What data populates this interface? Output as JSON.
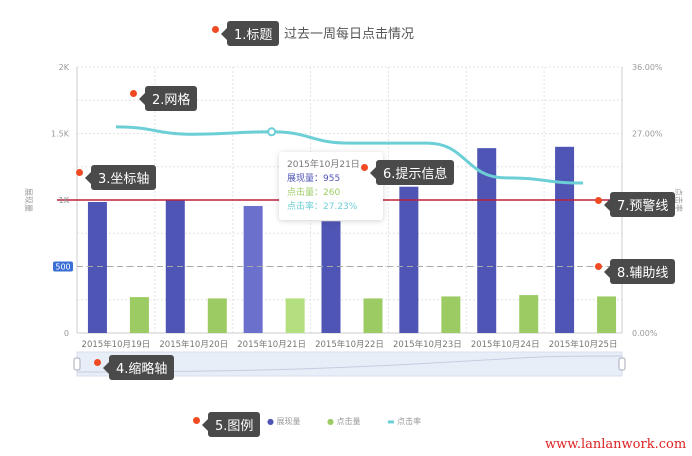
{
  "title": "过去一周每日点击情况",
  "annotations": [
    "1.标题",
    "2.网格",
    "3.坐标轴",
    "4.缩略轴",
    "5.图例",
    "6.提示信息",
    "7.预警线",
    "8.辅助线"
  ],
  "tooltip": {
    "date": "2015年10月21日",
    "rows": [
      "展现量：955",
      "点击量：260",
      "点击率：27.23%"
    ]
  },
  "watermark": "www.lanlanwork.com",
  "colors": {
    "impressions": "#4f55b5",
    "clicks": "#9ccb63",
    "rate": "#6ccfd6",
    "warning": "#c0203a",
    "aux": "#3b6fd6"
  },
  "chart_data": {
    "type": "bar",
    "categories": [
      "2015年10月19日",
      "2015年10月20日",
      "2015年10月21日",
      "2015年10月22日",
      "2015年10月23日",
      "2015年10月24日",
      "2015年10月25日"
    ],
    "series": [
      {
        "name": "展现量",
        "type": "bar",
        "axis": "left",
        "values": [
          985,
          1000,
          955,
          840,
          1100,
          1390,
          1400
        ]
      },
      {
        "name": "点击量",
        "type": "bar",
        "axis": "left",
        "values": [
          270,
          260,
          260,
          260,
          275,
          285,
          275
        ]
      },
      {
        "name": "点击率",
        "type": "line",
        "axis": "right",
        "values": [
          27.9,
          26.9,
          27.23,
          25.7,
          25.7,
          21.0,
          20.3
        ]
      }
    ],
    "ylabel": "展现量",
    "y2label": "点击率",
    "ylim": [
      0,
      2000
    ],
    "yticks": [
      "0",
      "500",
      "1K",
      "1.5K",
      "2K"
    ],
    "y2lim": [
      0,
      36
    ],
    "y2ticks": [
      "0.00%",
      "27.00%",
      "36.00%"
    ],
    "warning_line": 1000,
    "aux_line": 500,
    "aux_label": "500",
    "grid": true,
    "legend": "bottom"
  }
}
